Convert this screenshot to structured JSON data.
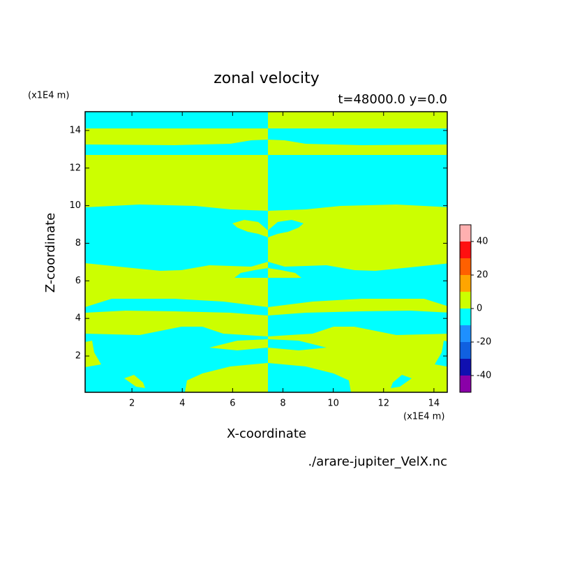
{
  "chart_data": {
    "type": "contour",
    "title": "zonal velocity",
    "subtitle": "t=48000.0 y=0.0",
    "x_label": "X-coordinate",
    "y_label": "Z-coordinate",
    "x_unit": "(x1E4 m)",
    "y_unit": "(x1E4 m)",
    "source": "./arare-jupiter_VelX.nc",
    "xlim": [
      0.14,
      14.53
    ],
    "ylim": [
      0.07,
      15.0
    ],
    "xticks": [
      2,
      4,
      6,
      8,
      10,
      12,
      14
    ],
    "yticks": [
      2,
      4,
      6,
      8,
      10,
      12,
      14
    ],
    "levels": [
      -50,
      -40,
      -30,
      -20,
      -10,
      0,
      10,
      20,
      30,
      40,
      50
    ],
    "colors": [
      "#8a00a8",
      "#1010b0",
      "#1060e0",
      "#1e90ff",
      "#00ffff",
      "#ccff00",
      "#ffa500",
      "#ff6000",
      "#ff1010",
      "#ffb0b0"
    ],
    "colorbar_ticks": [
      -40,
      -20,
      0,
      20,
      40
    ]
  }
}
